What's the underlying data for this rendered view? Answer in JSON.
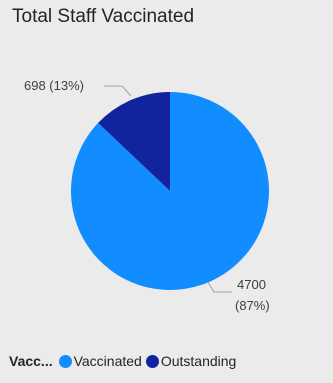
{
  "chart_data": {
    "type": "pie",
    "title": "Total Staff Vaccinated",
    "legend_title": "Vacc...",
    "legend_position": "bottom-left",
    "slices": [
      {
        "name": "Vaccinated",
        "value": 4700,
        "percent_label": "(87%)",
        "color": "#118dff"
      },
      {
        "name": "Outstanding",
        "value": 698,
        "percent_label": "(13%)",
        "color": "#12239e"
      }
    ],
    "data_labels": {
      "outstanding": "698 (13%)",
      "vaccinated_value": "4700",
      "vaccinated_percent": "(87%)"
    }
  }
}
